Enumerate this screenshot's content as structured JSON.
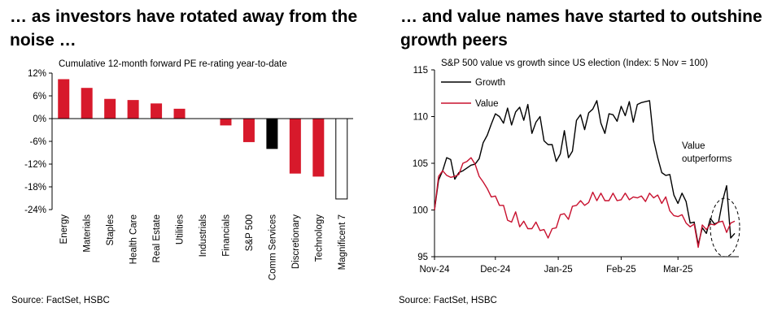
{
  "left": {
    "headline": "… as investors have rotated away from the noise …",
    "source": "Source: FactSet, HSBC"
  },
  "right": {
    "headline": "… and value names have started to outshine growth peers",
    "source": "Source: FactSet, HSBC"
  },
  "chart_data": [
    {
      "type": "bar",
      "title": "Cumulative 12-month forward PE re-rating year-to-date",
      "categories": [
        "Energy",
        "Materials",
        "Staples",
        "Health Care",
        "Real Estate",
        "Utilities",
        "Industrials",
        "Financials",
        "S&P 500",
        "Comm Services",
        "Discretionary",
        "Technology",
        "Magnificent 7"
      ],
      "values": [
        10.4,
        8.1,
        5.2,
        4.9,
        4.0,
        2.6,
        0.1,
        -1.8,
        -6.2,
        -8.0,
        -14.5,
        -15.3,
        -21.2
      ],
      "bar_colors": [
        "#d7192b",
        "#d7192b",
        "#d7192b",
        "#d7192b",
        "#d7192b",
        "#d7192b",
        "#d7192b",
        "#d7192b",
        "#d7192b",
        "#000000",
        "#d7192b",
        "#d7192b",
        "#ffffff"
      ],
      "yticks": [
        "12%",
        "6%",
        "0%",
        "-6%",
        "-12%",
        "-18%",
        "-24%"
      ],
      "ylim": [
        -24,
        12
      ],
      "xlabel": "",
      "ylabel": ""
    },
    {
      "type": "line",
      "title": "S&P 500 value vs growth since US election (Index: 5 Nov = 100)",
      "x_tick_labels": [
        "Nov-24",
        "Dec-24",
        "Jan-25",
        "Feb-25",
        "Mar-25"
      ],
      "x_tick_days": [
        0,
        30,
        61,
        92,
        120
      ],
      "x_range": [
        0,
        150
      ],
      "yticks": [
        "115",
        "110",
        "105",
        "100",
        "95"
      ],
      "ylim": [
        95,
        115
      ],
      "series": [
        {
          "name": "Growth",
          "color": "#000000",
          "days": [
            0,
            2,
            4,
            6,
            8,
            10,
            12,
            14,
            16,
            18,
            20,
            22,
            24,
            26,
            28,
            30,
            32,
            34,
            36,
            38,
            40,
            42,
            44,
            46,
            48,
            50,
            52,
            54,
            56,
            58,
            60,
            62,
            64,
            66,
            68,
            70,
            72,
            74,
            76,
            78,
            80,
            82,
            84,
            86,
            88,
            90,
            92,
            94,
            96,
            98,
            100,
            102,
            104,
            106,
            108,
            110,
            112,
            114,
            116,
            118,
            120,
            122,
            124,
            126,
            128,
            130,
            132,
            134,
            136,
            138,
            140,
            142,
            144,
            146,
            148
          ],
          "values": [
            100.0,
            103.2,
            104.2,
            105.6,
            105.4,
            103.3,
            104.0,
            104.2,
            104.5,
            104.8,
            104.9,
            105.5,
            107.2,
            108.0,
            109.2,
            110.3,
            110.0,
            109.3,
            110.9,
            109.1,
            110.5,
            111.0,
            109.6,
            111.3,
            108.2,
            109.4,
            110.0,
            107.4,
            107.0,
            107.0,
            105.2,
            106.0,
            108.5,
            105.6,
            106.3,
            109.6,
            110.2,
            108.6,
            110.4,
            110.8,
            111.7,
            109.3,
            108.2,
            110.3,
            110.2,
            109.5,
            111.1,
            110.1,
            111.6,
            109.4,
            111.3,
            111.5,
            111.6,
            111.7,
            107.5,
            105.6,
            104.0,
            103.7,
            103.8,
            101.6,
            100.7,
            101.8,
            100.9,
            98.6,
            98.7,
            96.3,
            98.1,
            97.5,
            99.1,
            98.5,
            98.7,
            101.0,
            102.6,
            97.0,
            97.5
          ]
        },
        {
          "name": "Value",
          "color": "#c8102e",
          "days": [
            0,
            2,
            4,
            6,
            8,
            10,
            12,
            14,
            16,
            18,
            20,
            22,
            24,
            26,
            28,
            30,
            32,
            34,
            36,
            38,
            40,
            42,
            44,
            46,
            48,
            50,
            52,
            54,
            56,
            58,
            60,
            62,
            64,
            66,
            68,
            70,
            72,
            74,
            76,
            78,
            80,
            82,
            84,
            86,
            88,
            90,
            92,
            94,
            96,
            98,
            100,
            102,
            104,
            106,
            108,
            110,
            112,
            114,
            116,
            118,
            120,
            122,
            124,
            126,
            128,
            130,
            132,
            134,
            136,
            138,
            140,
            142,
            144,
            146,
            148
          ],
          "values": [
            100.0,
            103.6,
            104.2,
            103.7,
            103.5,
            103.6,
            103.8,
            105.0,
            105.2,
            105.6,
            104.9,
            103.6,
            103.0,
            102.3,
            101.4,
            101.5,
            100.5,
            100.5,
            98.9,
            98.7,
            99.8,
            98.2,
            98.8,
            98.0,
            98.0,
            98.7,
            97.8,
            97.9,
            97.0,
            98.0,
            98.1,
            99.5,
            99.6,
            99.0,
            100.4,
            100.5,
            101.0,
            100.5,
            100.8,
            101.9,
            101.0,
            101.8,
            101.0,
            101.0,
            101.8,
            101.0,
            101.1,
            101.8,
            101.1,
            101.4,
            101.3,
            101.5,
            100.9,
            101.8,
            101.3,
            101.6,
            100.7,
            101.4,
            99.9,
            99.4,
            99.3,
            99.5,
            98.6,
            98.2,
            98.5,
            96.0,
            98.4,
            97.9,
            98.5,
            98.4,
            98.7,
            98.8,
            97.6,
            98.6,
            98.8
          ]
        }
      ],
      "legend": [
        "Growth",
        "Value"
      ],
      "legend_position": "top-left",
      "annotation": "Value outperforms",
      "annotation_lines": [
        "Value",
        "outperforms"
      ],
      "xlabel": "",
      "ylabel": ""
    }
  ]
}
